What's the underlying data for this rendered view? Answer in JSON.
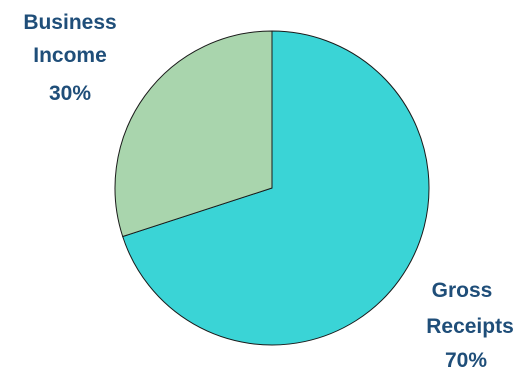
{
  "chart_data": {
    "type": "pie",
    "title": "",
    "slices": [
      {
        "label_lines": [
          "Gross",
          "Receipts"
        ],
        "percent_label": "70%",
        "value": 70,
        "color": "#3ad4d6"
      },
      {
        "label_lines": [
          "Business",
          "Income"
        ],
        "percent_label": "30%",
        "value": 30,
        "color": "#a9d5ad"
      }
    ],
    "label_color": "#1f4e79",
    "legend": "none"
  }
}
